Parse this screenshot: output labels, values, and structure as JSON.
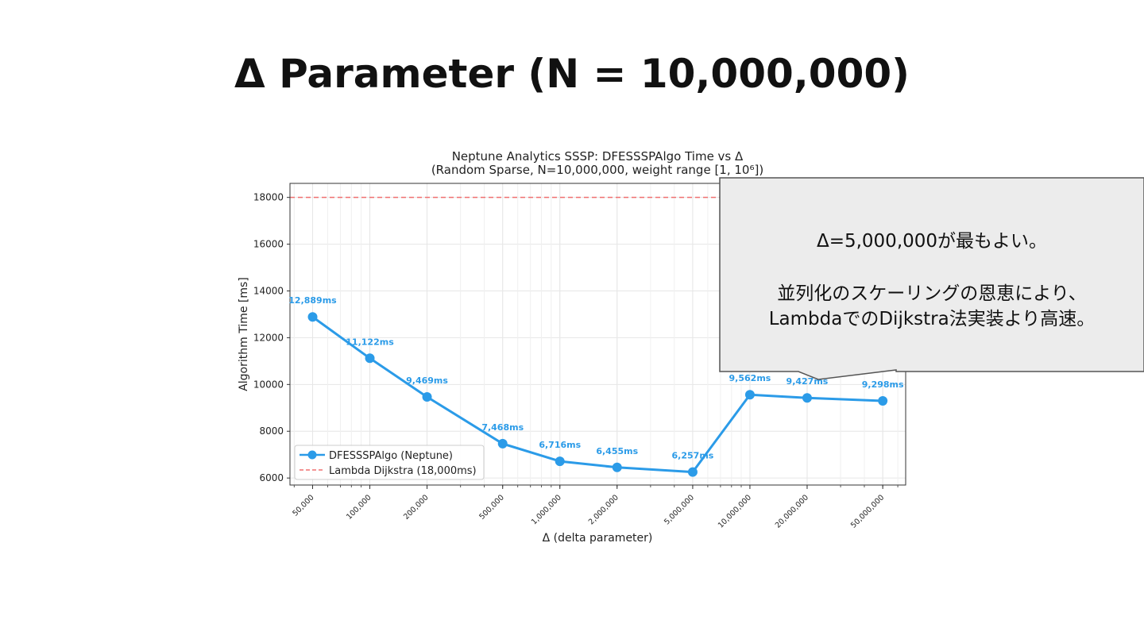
{
  "slide": {
    "title": "Δ Parameter (N = 10,000,000)"
  },
  "callout": {
    "line1": "Δ=5,000,000が最もよい。",
    "line2": "並列化のスケーリングの恩恵により、",
    "line3": "LambdaでのDijkstra法実装より高速。"
  },
  "chart_data": {
    "type": "line",
    "title": "Neptune Analytics SSSP: DFESSSPAlgo Time vs Δ",
    "subtitle": "(Random Sparse, N=10,000,000, weight range [1, 10⁶])",
    "xlabel": "Δ (delta parameter)",
    "ylabel": "Algorithm Time [ms]",
    "xscale": "log",
    "xlim": [
      38000,
      66000000
    ],
    "ylim": [
      5700,
      18600
    ],
    "grid": true,
    "legend_position": "lower-left",
    "x": [
      50000,
      100000,
      200000,
      500000,
      1000000,
      2000000,
      5000000,
      10000000,
      20000000,
      50000000
    ],
    "x_tick_labels": [
      "50,000",
      "100,000",
      "200,000",
      "500,000",
      "1,000,000",
      "2,000,000",
      "5,000,000",
      "10,000,000",
      "20,000,000",
      "50,000,000"
    ],
    "y_ticks": [
      6000,
      8000,
      10000,
      12000,
      14000,
      16000,
      18000
    ],
    "y_tick_labels": [
      "6000",
      "8000",
      "10000",
      "12000",
      "14000",
      "16000",
      "18000"
    ],
    "series": [
      {
        "name": "DFESSSPAlgo (Neptune)",
        "color": "#2b9be8",
        "values": [
          12889,
          11122,
          9469,
          7468,
          6716,
          6455,
          6257,
          9562,
          9427,
          9298
        ],
        "data_labels": [
          "12,889ms",
          "11,122ms",
          "9,469ms",
          "7,468ms",
          "6,716ms",
          "6,455ms",
          "6,257ms",
          "9,562ms",
          "9,427ms",
          "9,298ms"
        ]
      }
    ],
    "reference_lines": [
      {
        "name": "Lambda Dijkstra (18,000ms)",
        "y": 18000,
        "color": "#f07070",
        "style": "dashed"
      }
    ]
  }
}
